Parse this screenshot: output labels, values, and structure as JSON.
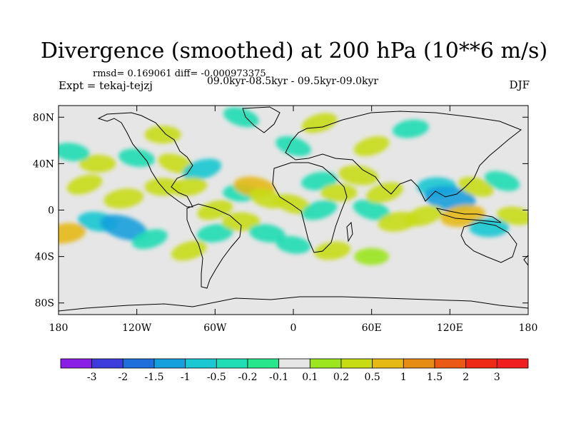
{
  "chart_data": {
    "type": "heatmap",
    "title": "Divergence (smoothed) at 200 hPa (10**6 m/s)",
    "stats": "rmsd= 0.169061 diff= -0.000973375",
    "experiment": "Expt = tekaj-tejzj",
    "period": "09.0kyr-08.5kyr - 09.5kyr-09.0kyr",
    "season": "DJF",
    "xlim": [
      -180,
      180
    ],
    "ylim": [
      -90,
      90
    ],
    "x_ticks": [
      {
        "value": -180,
        "label": "180"
      },
      {
        "value": -120,
        "label": "120W"
      },
      {
        "value": -60,
        "label": "60W"
      },
      {
        "value": 0,
        "label": "0"
      },
      {
        "value": 60,
        "label": "60E"
      },
      {
        "value": 120,
        "label": "120E"
      },
      {
        "value": 180,
        "label": "180"
      }
    ],
    "y_ticks": [
      {
        "value": 80,
        "label": "80N"
      },
      {
        "value": 40,
        "label": "40N"
      },
      {
        "value": 0,
        "label": "0"
      },
      {
        "value": -40,
        "label": "40S"
      },
      {
        "value": -80,
        "label": "80S"
      }
    ],
    "colorbar": {
      "boundaries": [
        "-3",
        "-2",
        "-1.5",
        "-1",
        "-0.5",
        "-0.2",
        "-0.1",
        "0.1",
        "0.2",
        "0.5",
        "1",
        "1.5",
        "2",
        "3"
      ],
      "colors": [
        "#8a1ee6",
        "#3c3cdc",
        "#1e6edc",
        "#14a0dc",
        "#19c8d2",
        "#1edcb4",
        "#28e68c",
        "#e6e6e6",
        "#9be61e",
        "#c8dc14",
        "#e6b914",
        "#e68c14",
        "#eb5a14",
        "#ee2a14",
        "#f01e1e"
      ]
    },
    "anomalies": [
      {
        "lon": -160,
        "lat": 22,
        "value": 0.3
      },
      {
        "lon": -130,
        "lat": 10,
        "value": 0.5
      },
      {
        "lon": -100,
        "lat": 20,
        "value": 0.3
      },
      {
        "lon": -150,
        "lat": -10,
        "value": -0.5
      },
      {
        "lon": -130,
        "lat": -15,
        "value": -1.0
      },
      {
        "lon": -110,
        "lat": -25,
        "value": -0.3
      },
      {
        "lon": -175,
        "lat": -20,
        "value": 0.6
      },
      {
        "lon": -150,
        "lat": 40,
        "value": 0.3
      },
      {
        "lon": -120,
        "lat": 45,
        "value": -0.3
      },
      {
        "lon": -90,
        "lat": 40,
        "value": 0.3
      },
      {
        "lon": -70,
        "lat": 35,
        "value": -0.5
      },
      {
        "lon": -80,
        "lat": 20,
        "value": 0.3
      },
      {
        "lon": -40,
        "lat": 15,
        "value": -0.3
      },
      {
        "lon": -30,
        "lat": 20,
        "value": 0.6
      },
      {
        "lon": -20,
        "lat": 10,
        "value": 0.3
      },
      {
        "lon": -60,
        "lat": 0,
        "value": 0.3
      },
      {
        "lon": -60,
        "lat": -20,
        "value": -0.3
      },
      {
        "lon": -40,
        "lat": -10,
        "value": 0.4
      },
      {
        "lon": -20,
        "lat": -20,
        "value": -0.3
      },
      {
        "lon": 0,
        "lat": 5,
        "value": 0.3
      },
      {
        "lon": 20,
        "lat": 0,
        "value": -0.3
      },
      {
        "lon": 20,
        "lat": 25,
        "value": -0.3
      },
      {
        "lon": 35,
        "lat": 15,
        "value": 0.3
      },
      {
        "lon": 50,
        "lat": 30,
        "value": 0.5
      },
      {
        "lon": 60,
        "lat": 0,
        "value": -0.4
      },
      {
        "lon": 70,
        "lat": 15,
        "value": 0.4
      },
      {
        "lon": 80,
        "lat": -10,
        "value": 0.5
      },
      {
        "lon": 110,
        "lat": 20,
        "value": -0.5
      },
      {
        "lon": 120,
        "lat": 10,
        "value": -1.2
      },
      {
        "lon": 140,
        "lat": 20,
        "value": 0.3
      },
      {
        "lon": 100,
        "lat": -5,
        "value": 0.4
      },
      {
        "lon": 130,
        "lat": -5,
        "value": 0.8
      },
      {
        "lon": 150,
        "lat": -15,
        "value": -0.5
      },
      {
        "lon": 170,
        "lat": -5,
        "value": 0.3
      },
      {
        "lon": 160,
        "lat": 25,
        "value": -0.3
      },
      {
        "lon": -80,
        "lat": -35,
        "value": 0.3
      },
      {
        "lon": 30,
        "lat": -35,
        "value": 0.3
      },
      {
        "lon": 60,
        "lat": -40,
        "value": 0.2
      },
      {
        "lon": 0,
        "lat": -30,
        "value": -0.2
      },
      {
        "lon": -40,
        "lat": 80,
        "value": -0.3
      },
      {
        "lon": 20,
        "lat": 75,
        "value": 0.3
      },
      {
        "lon": 90,
        "lat": 70,
        "value": -0.3
      },
      {
        "lon": -100,
        "lat": 65,
        "value": 0.3
      },
      {
        "lon": -170,
        "lat": 50,
        "value": -0.3
      },
      {
        "lon": 0,
        "lat": 55,
        "value": -0.3
      },
      {
        "lon": 60,
        "lat": 55,
        "value": 0.3
      }
    ]
  }
}
